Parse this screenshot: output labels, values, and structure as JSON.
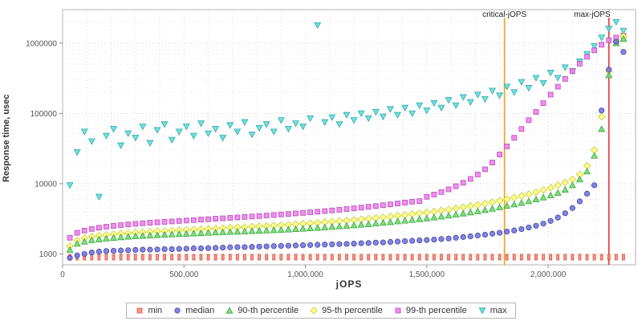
{
  "chart_data": {
    "type": "scatter",
    "title": "",
    "xlabel": "jOPS",
    "ylabel": "Response time, usec",
    "x_scale": "linear",
    "y_scale": "log",
    "xlim": [
      0,
      2360000
    ],
    "ylim": [
      700,
      3000000
    ],
    "grid": {
      "on": true,
      "vertical_step": 100000,
      "minor_horizontal": true
    },
    "legend_position": "bottom",
    "x_ticks": {
      "values": [
        0,
        500000,
        1000000,
        1500000,
        2000000
      ],
      "labels": [
        "0",
        "500,000",
        "1,000,000",
        "1,500,000",
        "2,000,000"
      ]
    },
    "y_ticks": {
      "values": [
        1000,
        10000,
        100000,
        1000000
      ],
      "labels": [
        "1000",
        "10000",
        "100000",
        "1000000"
      ]
    },
    "reference_lines": [
      {
        "label": "critical-jOPS",
        "x": 1820000,
        "color": "#f5a31b",
        "anchor": "middle"
      },
      {
        "label": "max-jOPS",
        "x": 2250000,
        "color": "#e53935",
        "anchor": "end"
      }
    ],
    "x": [
      30000,
      60000,
      90000,
      120000,
      150000,
      180000,
      210000,
      240000,
      270000,
      300000,
      330000,
      360000,
      390000,
      420000,
      450000,
      480000,
      510000,
      540000,
      570000,
      600000,
      630000,
      660000,
      690000,
      720000,
      750000,
      780000,
      810000,
      840000,
      870000,
      900000,
      930000,
      960000,
      990000,
      1020000,
      1050000,
      1080000,
      1110000,
      1140000,
      1170000,
      1200000,
      1230000,
      1260000,
      1290000,
      1320000,
      1350000,
      1380000,
      1410000,
      1440000,
      1470000,
      1500000,
      1530000,
      1560000,
      1590000,
      1620000,
      1650000,
      1680000,
      1710000,
      1740000,
      1770000,
      1800000,
      1830000,
      1860000,
      1890000,
      1920000,
      1950000,
      1980000,
      2010000,
      2040000,
      2070000,
      2100000,
      2130000,
      2160000,
      2190000,
      2220000,
      2250000,
      2280000,
      2310000
    ],
    "series": [
      {
        "name": "min",
        "marker": "vdash",
        "legend_marker": "square",
        "fill": "#ff8a7a",
        "stroke": "#d8503f",
        "values": [
          900,
          900,
          900,
          900,
          900,
          900,
          900,
          900,
          900,
          900,
          900,
          900,
          900,
          900,
          900,
          900,
          900,
          900,
          900,
          900,
          900,
          900,
          900,
          900,
          900,
          900,
          900,
          900,
          900,
          900,
          900,
          900,
          900,
          900,
          900,
          900,
          900,
          900,
          900,
          900,
          900,
          900,
          900,
          900,
          900,
          900,
          900,
          900,
          900,
          900,
          900,
          900,
          900,
          900,
          900,
          900,
          900,
          900,
          900,
          900,
          900,
          900,
          900,
          900,
          900,
          900,
          900,
          900,
          900,
          900,
          900,
          900,
          900,
          900,
          900,
          900,
          900
        ]
      },
      {
        "name": "median",
        "marker": "circle",
        "fill": "#7575dd",
        "stroke": "#4444aa",
        "values": [
          880,
          950,
          1000,
          1050,
          1080,
          1100,
          1110,
          1120,
          1130,
          1140,
          1150,
          1150,
          1160,
          1170,
          1170,
          1180,
          1190,
          1200,
          1200,
          1210,
          1220,
          1230,
          1240,
          1250,
          1250,
          1260,
          1270,
          1280,
          1290,
          1300,
          1310,
          1320,
          1330,
          1340,
          1350,
          1360,
          1370,
          1380,
          1390,
          1400,
          1420,
          1430,
          1450,
          1460,
          1480,
          1500,
          1520,
          1540,
          1560,
          1580,
          1600,
          1630,
          1660,
          1700,
          1740,
          1780,
          1830,
          1880,
          1940,
          2000,
          2080,
          2160,
          2260,
          2380,
          2520,
          2700,
          2950,
          3300,
          3800,
          4500,
          5600,
          7200,
          9500,
          110000,
          420000,
          1050000,
          750000
        ]
      },
      {
        "name": "90-th percentile",
        "marker": "triangle-up",
        "fill": "#6fdd6f",
        "stroke": "#3aa53a",
        "values": [
          1150,
          1400,
          1500,
          1570,
          1620,
          1660,
          1700,
          1730,
          1760,
          1790,
          1810,
          1840,
          1860,
          1880,
          1900,
          1920,
          1940,
          1960,
          1980,
          2000,
          2020,
          2040,
          2060,
          2080,
          2100,
          2120,
          2140,
          2160,
          2180,
          2200,
          2230,
          2260,
          2290,
          2320,
          2350,
          2390,
          2430,
          2470,
          2510,
          2560,
          2610,
          2660,
          2720,
          2780,
          2840,
          2910,
          2980,
          3050,
          3130,
          3220,
          3310,
          3410,
          3520,
          3640,
          3770,
          3910,
          4060,
          4230,
          4410,
          4610,
          4830,
          5070,
          5340,
          5640,
          5980,
          6370,
          6820,
          7400,
          8200,
          9500,
          11500,
          15000,
          25000,
          60000,
          350000,
          1000000,
          1150000
        ]
      },
      {
        "name": "95-th percentile",
        "marker": "diamond",
        "fill": "#ffff7e",
        "stroke": "#c9c93a",
        "values": [
          1300,
          1550,
          1680,
          1760,
          1820,
          1870,
          1910,
          1950,
          1980,
          2010,
          2040,
          2070,
          2100,
          2120,
          2150,
          2170,
          2200,
          2220,
          2250,
          2270,
          2300,
          2330,
          2360,
          2390,
          2420,
          2450,
          2480,
          2510,
          2540,
          2570,
          2610,
          2650,
          2690,
          2730,
          2780,
          2830,
          2880,
          2930,
          2990,
          3050,
          3110,
          3180,
          3250,
          3330,
          3410,
          3500,
          3590,
          3690,
          3800,
          3910,
          4030,
          4160,
          4300,
          4450,
          4620,
          4800,
          5000,
          5220,
          5460,
          5720,
          6010,
          6330,
          6690,
          7100,
          7570,
          8110,
          8740,
          9480,
          10400,
          11500,
          13500,
          18000,
          30000,
          90000,
          400000,
          1050000,
          1250000
        ]
      },
      {
        "name": "99-th percentile",
        "marker": "square",
        "fill": "#ee82ee",
        "stroke": "#b84db8",
        "values": [
          1700,
          2000,
          2150,
          2270,
          2360,
          2440,
          2510,
          2570,
          2630,
          2680,
          2730,
          2780,
          2820,
          2860,
          2900,
          2950,
          2990,
          3030,
          3080,
          3120,
          3170,
          3210,
          3260,
          3310,
          3360,
          3410,
          3460,
          3520,
          3580,
          3640,
          3700,
          3770,
          3840,
          3910,
          3990,
          4070,
          4160,
          4250,
          4350,
          4450,
          4560,
          4680,
          4800,
          4930,
          5070,
          5220,
          5380,
          5550,
          5650,
          6500,
          7000,
          7600,
          8300,
          9200,
          10300,
          11700,
          13500,
          16000,
          20000,
          26000,
          34000,
          45000,
          60000,
          80000,
          105000,
          140000,
          185000,
          240000,
          310000,
          400000,
          510000,
          640000,
          790000,
          950000,
          1100000,
          1200000,
          1280000
        ]
      },
      {
        "name": "max",
        "marker": "triangle-down",
        "fill": "#63dede",
        "stroke": "#2fa8a8",
        "values": [
          9500,
          28000,
          55000,
          40000,
          6500,
          48000,
          60000,
          35000,
          52000,
          45000,
          65000,
          38000,
          58000,
          70000,
          42000,
          55000,
          65000,
          48000,
          72000,
          52000,
          60000,
          45000,
          68000,
          55000,
          75000,
          50000,
          62000,
          70000,
          55000,
          80000,
          60000,
          72000,
          65000,
          85000,
          1800000,
          75000,
          88000,
          70000,
          95000,
          80000,
          100000,
          85000,
          105000,
          90000,
          115000,
          95000,
          120000,
          100000,
          130000,
          110000,
          140000,
          120000,
          155000,
          130000,
          170000,
          145000,
          185000,
          160000,
          210000,
          180000,
          240000,
          200000,
          280000,
          230000,
          320000,
          270000,
          380000,
          320000,
          450000,
          400000,
          550000,
          700000,
          900000,
          1200000,
          1600000,
          2000000,
          1500000
        ]
      }
    ]
  }
}
